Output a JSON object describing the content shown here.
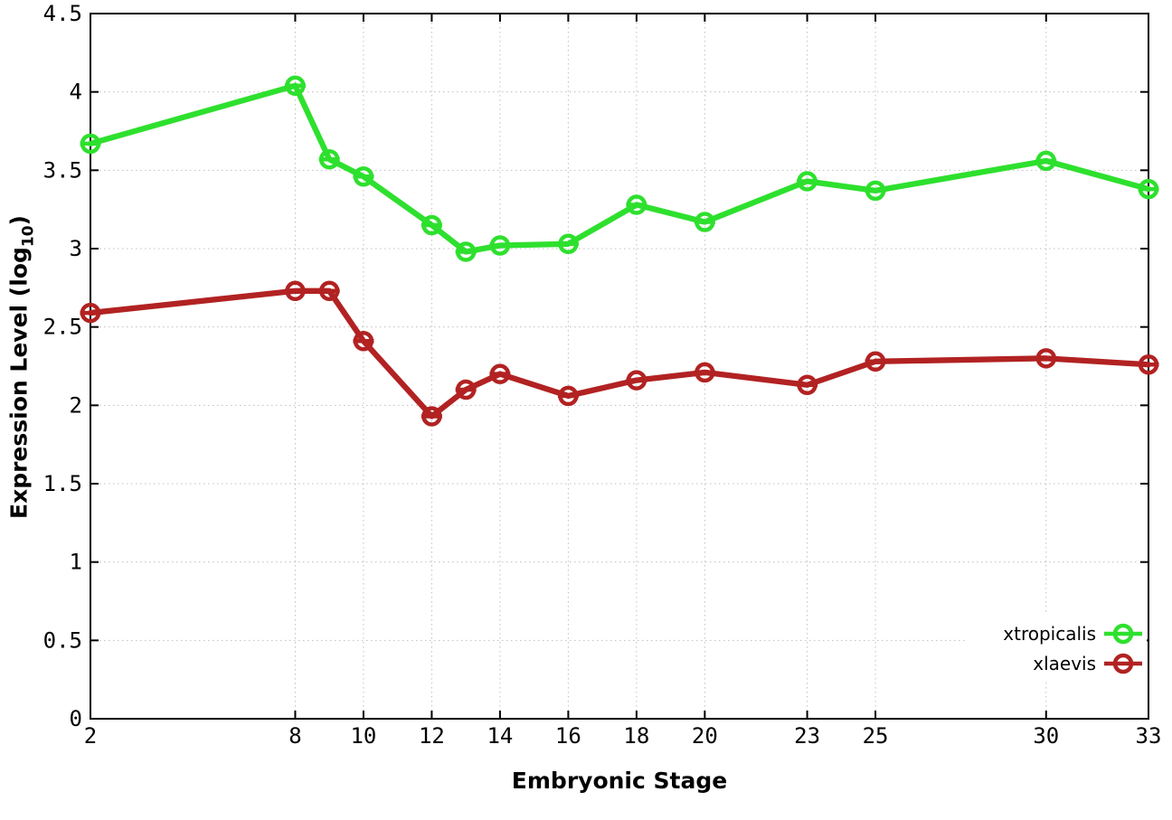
{
  "chart_data": {
    "type": "line",
    "title": "",
    "xlabel": "Embryonic Stage",
    "ylabel_pre": "Expression Level (log",
    "ylabel_sub": "10",
    "ylabel_post": ")",
    "x": [
      2,
      8,
      9,
      10,
      12,
      13,
      14,
      16,
      18,
      20,
      23,
      25,
      30,
      33
    ],
    "series": [
      {
        "name": "xtropicalis",
        "color": "#2ee02e",
        "values": [
          3.67,
          4.04,
          3.57,
          3.46,
          3.15,
          2.98,
          3.02,
          3.03,
          3.28,
          3.17,
          3.43,
          3.37,
          3.56,
          3.38
        ]
      },
      {
        "name": "xlaevis",
        "color": "#b22222",
        "values": [
          2.59,
          2.73,
          2.73,
          2.41,
          1.93,
          2.1,
          2.2,
          2.06,
          2.16,
          2.21,
          2.13,
          2.28,
          2.3,
          2.26
        ]
      }
    ],
    "xlim": [
      2,
      33
    ],
    "ylim": [
      0,
      4.5
    ],
    "xticks": [
      2,
      8,
      10,
      12,
      14,
      16,
      18,
      20,
      23,
      25,
      30,
      33
    ],
    "xtick_labels": [
      "2",
      "8",
      "10",
      "12",
      "14",
      "16",
      "18",
      "20",
      "23",
      "25",
      "30",
      "33"
    ],
    "yticks": [
      0,
      0.5,
      1,
      1.5,
      2,
      2.5,
      3,
      3.5,
      4,
      4.5
    ],
    "ytick_labels": [
      "0",
      "0.5",
      "1",
      "1.5",
      "2",
      "2.5",
      "3",
      "3.5",
      "4",
      "4.5"
    ],
    "grid": true,
    "grid_style": "dotted",
    "legend_position": "bottom-right",
    "marker": "open-circle-hbar",
    "colors": {
      "grid": "#bfbfbf",
      "border": "#000000",
      "text": "#000000",
      "legend_background": "#ffffff"
    }
  }
}
